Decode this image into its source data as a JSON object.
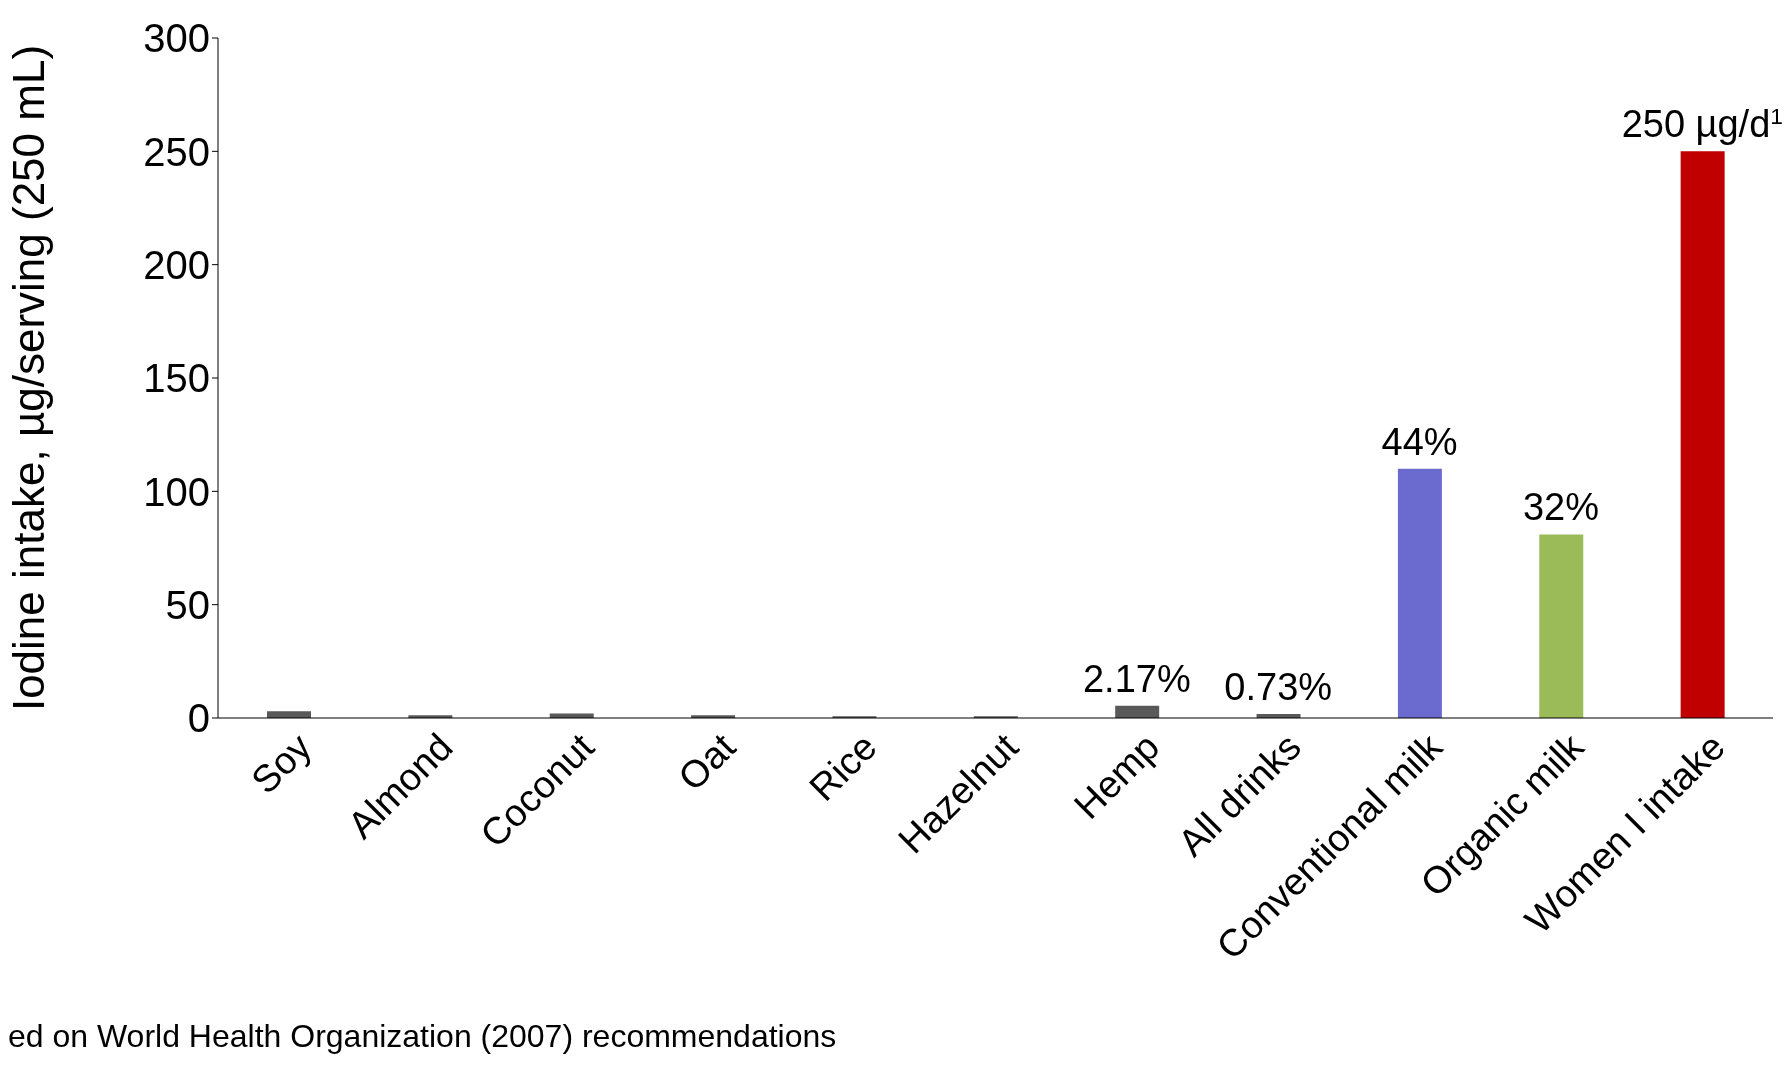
{
  "chart_data": {
    "type": "bar",
    "ylabel": "Iodine intake, µg/serving (250 mL)",
    "categories": [
      "Soy",
      "Almond",
      "Coconut",
      "Oat",
      "Rice",
      "Hazelnut",
      "Hemp",
      "All drinks",
      "Conventional milk",
      "Organic milk",
      "Women I intake"
    ],
    "values": [
      3,
      1.2,
      2,
      1.2,
      0.8,
      0.8,
      5.4,
      1.8,
      110,
      81,
      250
    ],
    "colors": [
      "#595959",
      "#595959",
      "#595959",
      "#595959",
      "#595959",
      "#595959",
      "#595959",
      "#595959",
      "#6b6bcf",
      "#9bbb59",
      "#c00000"
    ],
    "ylim": [
      0,
      300
    ],
    "yticks": [
      0,
      50,
      100,
      150,
      200,
      250,
      300
    ],
    "annotations": [
      {
        "text": "2.17%",
        "x": "Hemp",
        "y": 5.4
      },
      {
        "text": "0.73%",
        "x": "All drinks",
        "y": 1.8
      },
      {
        "text": "44%",
        "x": "Conventional milk",
        "y": 110
      },
      {
        "text": "32%",
        "x": "Organic milk",
        "y": 81
      },
      {
        "text": "250 µg/d$^{1}$",
        "x": "Women I intake",
        "y": 250
      },
      "ed on World Health Organization (2007) recommendations"
    ]
  }
}
